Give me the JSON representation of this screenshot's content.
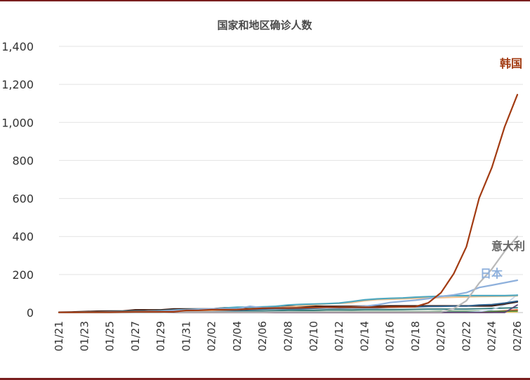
{
  "chart_data": {
    "type": "line",
    "title": "国家和地区确诊人数",
    "xlabel": "",
    "ylabel": "",
    "ylim": [
      0,
      1400
    ],
    "yticks": [
      0,
      200,
      400,
      600,
      800,
      1000,
      1200,
      1400
    ],
    "ytick_labels": [
      "0",
      "200",
      "400",
      "600",
      "800",
      "1,000",
      "1,200",
      "1,400"
    ],
    "x": [
      "01/21",
      "01/22",
      "01/23",
      "01/24",
      "01/25",
      "01/26",
      "01/27",
      "01/28",
      "01/29",
      "01/30",
      "01/31",
      "02/01",
      "02/02",
      "02/03",
      "02/04",
      "02/05",
      "02/06",
      "02/07",
      "02/08",
      "02/09",
      "02/10",
      "02/11",
      "02/12",
      "02/13",
      "02/14",
      "02/15",
      "02/16",
      "02/17",
      "02/18",
      "02/19",
      "02/20",
      "02/21",
      "02/22",
      "02/23",
      "02/24",
      "02/25",
      "02/26"
    ],
    "xtick_labels": [
      "01/21",
      "01/23",
      "01/25",
      "01/27",
      "01/29",
      "01/31",
      "02/02",
      "02/04",
      "02/06",
      "02/08",
      "02/10",
      "02/12",
      "02/14",
      "02/16",
      "02/18",
      "02/20",
      "02/22",
      "02/24",
      "02/26"
    ],
    "grid": "horizontal",
    "annotations": [
      {
        "text": "韩国",
        "series": 0,
        "color": "#a23b12"
      },
      {
        "text": "意大利",
        "series": 1,
        "color": "#666666"
      },
      {
        "text": "日本",
        "series": 2,
        "color": "#8eb0dc"
      }
    ],
    "series": [
      {
        "color": "#a23b12",
        "width": 2.2,
        "values": [
          1,
          1,
          2,
          2,
          2,
          3,
          4,
          4,
          4,
          4,
          11,
          12,
          15,
          15,
          16,
          19,
          23,
          24,
          24,
          25,
          27,
          28,
          28,
          28,
          28,
          28,
          29,
          30,
          31,
          51,
          104,
          204,
          346,
          602,
          763,
          977,
          1146
        ]
      },
      {
        "color": "#b9b9b9",
        "width": 2.2,
        "values": [
          0,
          0,
          0,
          0,
          0,
          0,
          0,
          0,
          0,
          2,
          2,
          2,
          2,
          2,
          2,
          2,
          2,
          3,
          3,
          3,
          3,
          3,
          3,
          3,
          3,
          3,
          3,
          3,
          3,
          3,
          3,
          20,
          62,
          155,
          229,
          322,
          400
        ]
      },
      {
        "color": "#8eb0dc",
        "width": 2.2,
        "values": [
          1,
          1,
          1,
          1,
          3,
          3,
          4,
          6,
          7,
          11,
          14,
          17,
          20,
          20,
          20,
          33,
          25,
          25,
          25,
          26,
          26,
          26,
          28,
          29,
          33,
          41,
          53,
          59,
          65,
          73,
          85,
          93,
          105,
          132,
          144,
          157,
          170
        ]
      },
      {
        "color": "#4fa8bf",
        "width": 2.2,
        "values": [
          1,
          1,
          3,
          3,
          4,
          5,
          7,
          7,
          10,
          13,
          16,
          18,
          18,
          24,
          28,
          28,
          30,
          33,
          40,
          43,
          45,
          47,
          50,
          58,
          67,
          72,
          75,
          77,
          81,
          84,
          86,
          89,
          89,
          89,
          89,
          89,
          91
        ]
      },
      {
        "color": "#f5c08c",
        "width": 2.0,
        "values": [
          0,
          0,
          1,
          1,
          2,
          3,
          5,
          8,
          9,
          9,
          10,
          10,
          11,
          13,
          15,
          20,
          24,
          26,
          30,
          35,
          40,
          45,
          48,
          52,
          62,
          68,
          70,
          72,
          75,
          77,
          78,
          80,
          82,
          84,
          85,
          86,
          88
        ]
      },
      {
        "color": "#2e5e8a",
        "width": 2.0,
        "values": [
          0,
          0,
          0,
          0,
          0,
          0,
          1,
          1,
          3,
          5,
          6,
          7,
          8,
          10,
          12,
          16,
          18,
          20,
          20,
          20,
          22,
          24,
          24,
          25,
          25,
          25,
          28,
          30,
          30,
          32,
          33,
          34,
          34,
          40,
          42,
          50,
          60
        ]
      },
      {
        "color": "#3b1a12",
        "width": 2.2,
        "values": [
          2,
          3,
          5,
          7,
          8,
          8,
          14,
          14,
          14,
          19,
          19,
          19,
          19,
          25,
          25,
          25,
          25,
          32,
          33,
          33,
          33,
          33,
          33,
          33,
          34,
          34,
          35,
          35,
          35,
          35,
          35,
          35,
          35,
          35,
          35,
          45,
          56
        ]
      },
      {
        "color": "#5e4b7a",
        "width": 1.8,
        "values": [
          0,
          0,
          0,
          0,
          0,
          0,
          0,
          0,
          0,
          0,
          0,
          0,
          0,
          0,
          0,
          0,
          0,
          0,
          0,
          0,
          0,
          0,
          0,
          0,
          0,
          0,
          0,
          0,
          0,
          0,
          0,
          0,
          0,
          0,
          0,
          0,
          40
        ]
      },
      {
        "color": "#c8d8ec",
        "width": 1.8,
        "values": [
          0,
          0,
          0,
          0,
          0,
          0,
          0,
          0,
          0,
          1,
          1,
          2,
          2,
          2,
          2,
          2,
          2,
          2,
          2,
          2,
          2,
          2,
          2,
          2,
          2,
          2,
          2,
          2,
          2,
          2,
          2,
          2,
          2,
          5,
          15,
          40,
          95
        ]
      },
      {
        "color": "#2f7a7a",
        "width": 1.8,
        "values": [
          0,
          0,
          0,
          0,
          1,
          2,
          2,
          3,
          3,
          4,
          5,
          6,
          7,
          8,
          8,
          8,
          9,
          10,
          12,
          12,
          12,
          14,
          14,
          14,
          15,
          15,
          15,
          16,
          17,
          18,
          18,
          18,
          18,
          20,
          22,
          24,
          26
        ]
      },
      {
        "color": "#d9d9d9",
        "width": 1.8,
        "values": [
          0,
          0,
          1,
          2,
          3,
          4,
          4,
          4,
          4,
          5,
          5,
          6,
          6,
          8,
          10,
          12,
          12,
          12,
          14,
          15,
          15,
          15,
          16,
          16,
          18,
          18,
          19,
          20,
          20,
          21,
          21,
          21,
          21,
          21,
          21,
          22,
          23
        ]
      },
      {
        "color": "#3a7d44",
        "width": 1.6,
        "values": [
          0,
          0,
          0,
          0,
          0,
          1,
          1,
          1,
          2,
          2,
          3,
          3,
          3,
          3,
          3,
          3,
          3,
          3,
          4,
          5,
          5,
          5,
          5,
          6,
          6,
          6,
          6,
          6,
          6,
          6,
          7,
          7,
          7,
          7,
          7,
          7,
          8
        ]
      },
      {
        "color": "#e8632b",
        "width": 1.6,
        "values": [
          0,
          0,
          0,
          0,
          0,
          0,
          0,
          0,
          0,
          0,
          0,
          0,
          0,
          0,
          0,
          0,
          0,
          0,
          0,
          0,
          0,
          0,
          0,
          0,
          0,
          0,
          0,
          0,
          0,
          0,
          2,
          2,
          2,
          4,
          6,
          10,
          15
        ]
      },
      {
        "color": "#e03030",
        "width": 1.6,
        "values": [
          0,
          0,
          0,
          0,
          0,
          0,
          0,
          0,
          0,
          0,
          0,
          0,
          0,
          0,
          0,
          0,
          0,
          0,
          0,
          0,
          0,
          0,
          0,
          0,
          0,
          0,
          0,
          0,
          0,
          0,
          0,
          0,
          0,
          0,
          0,
          5,
          12
        ]
      },
      {
        "color": "#f2c94c",
        "width": 1.6,
        "values": [
          0,
          0,
          0,
          0,
          0,
          0,
          0,
          0,
          0,
          0,
          0,
          0,
          0,
          0,
          0,
          0,
          0,
          0,
          0,
          0,
          0,
          0,
          0,
          0,
          0,
          0,
          0,
          0,
          0,
          0,
          0,
          0,
          0,
          0,
          1,
          2,
          4
        ]
      }
    ]
  }
}
